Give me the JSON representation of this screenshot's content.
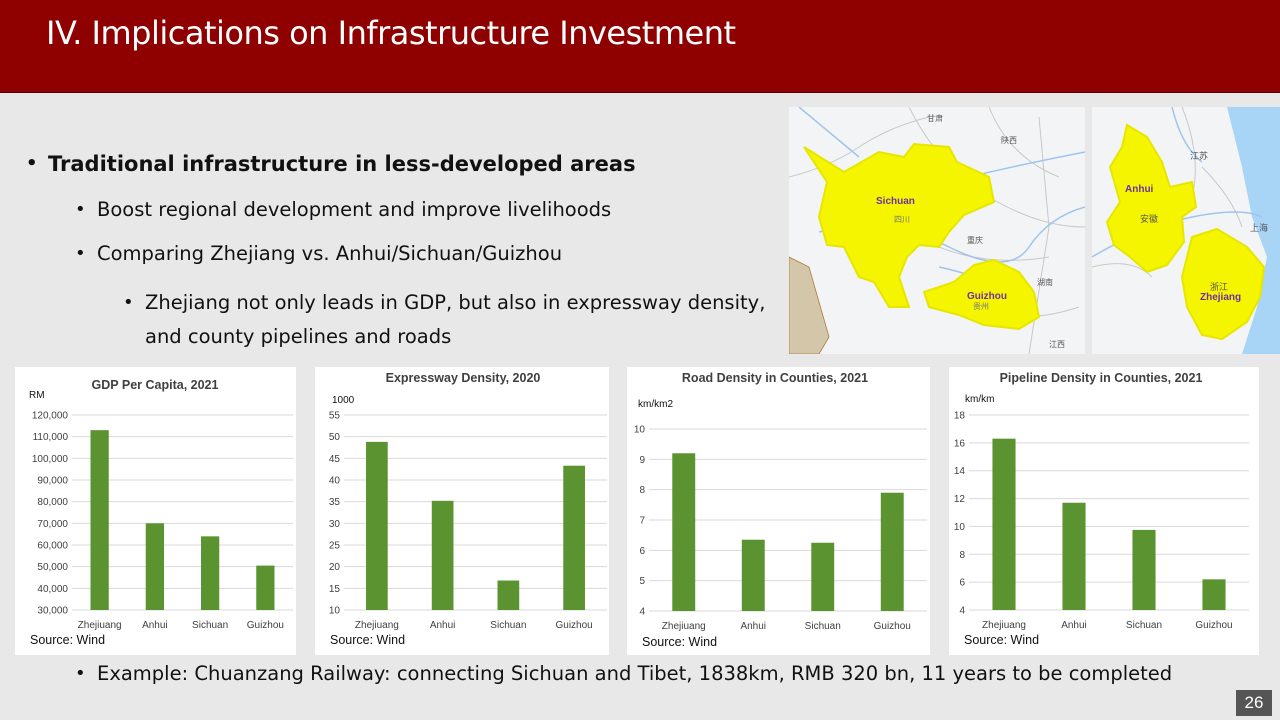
{
  "title": "IV. Implications on Infrastructure Investment",
  "bullets": {
    "main": "Traditional infrastructure in less-developed areas",
    "sub1": "Boost regional development and improve livelihoods",
    "sub2": "Comparing Zhejiang vs. Anhui/Sichuan/Guizhou",
    "sub3_line1": "Zhejiang not only leads in GDP, but also in expressway density,",
    "sub3_line2": "and county pipelines and roads",
    "example": "Example: Chuanzang Railway: connecting Sichuan and Tibet, 1838km, RMB 320 bn, 11 years to be completed"
  },
  "maps": {
    "left": {
      "labels": {
        "sichuan": "Sichuan",
        "guizhou": "Guizhou",
        "gansu": "甘肃",
        "shaanxi": "陕西",
        "sichuan_cn": "四川",
        "chongqing": "重庆",
        "hunan": "湖南",
        "guizhou_cn": "贵州",
        "jiangxi": "江西"
      }
    },
    "right": {
      "labels": {
        "anhui": "Anhui",
        "zhejiang": "Zhejiang",
        "jiangsu": "江苏",
        "anhui_cn": "安徽",
        "shanghai": "上海",
        "zhejiang_cn": "浙江"
      }
    },
    "highlight_color": "#f5f500"
  },
  "colors": {
    "bar": "#5b9331",
    "title_bar": "#8f0000"
  },
  "source_label": "Source: Wind",
  "page_number": "26",
  "chart_data": [
    {
      "type": "bar",
      "title": "GDP Per Capita, 2021",
      "unit": "RM",
      "categories": [
        "Zhejiuang",
        "Anhui",
        "Sichuan",
        "Guizhou"
      ],
      "values": [
        113000,
        70000,
        64000,
        50500
      ],
      "ylim": [
        30000,
        120000
      ],
      "yticks": [
        30000,
        40000,
        50000,
        60000,
        70000,
        80000,
        90000,
        100000,
        110000,
        120000
      ],
      "ticklabels": [
        "30,000",
        "40,000",
        "50,000",
        "60,000",
        "70,000",
        "80,000",
        "90,000",
        "100,000",
        "110,000",
        "120,000"
      ],
      "grid": true
    },
    {
      "type": "bar",
      "title": "Expressway Density, 2020",
      "unit": "1000",
      "categories": [
        "Zhejiuang",
        "Anhui",
        "Sichuan",
        "Guizhou"
      ],
      "values": [
        48.8,
        35.2,
        16.8,
        43.3
      ],
      "ylim": [
        10,
        55
      ],
      "yticks": [
        10,
        15,
        20,
        25,
        30,
        35,
        40,
        45,
        50,
        55
      ],
      "ticklabels": [
        "10",
        "15",
        "20",
        "25",
        "30",
        "35",
        "40",
        "45",
        "50",
        "55"
      ],
      "grid": true
    },
    {
      "type": "bar",
      "title": "Road Density in Counties, 2021",
      "unit": "km/km2",
      "categories": [
        "Zhejiuang",
        "Anhui",
        "Sichuan",
        "Guizhou"
      ],
      "values": [
        9.2,
        6.35,
        6.25,
        7.9
      ],
      "ylim": [
        4,
        10
      ],
      "yticks": [
        4,
        5,
        6,
        7,
        8,
        9,
        10
      ],
      "ticklabels": [
        "4",
        "5",
        "6",
        "7",
        "8",
        "9",
        "10"
      ],
      "grid": true
    },
    {
      "type": "bar",
      "title": "Pipeline Density in Counties, 2021",
      "unit": "km/km",
      "categories": [
        "Zhejiuang",
        "Anhui",
        "Sichuan",
        "Guizhou"
      ],
      "values": [
        16.3,
        11.7,
        9.75,
        6.2
      ],
      "ylim": [
        4,
        18
      ],
      "yticks": [
        4,
        6,
        8,
        10,
        12,
        14,
        16,
        18
      ],
      "ticklabels": [
        "4",
        "6",
        "8",
        "10",
        "12",
        "14",
        "16",
        "18"
      ],
      "grid": true
    }
  ]
}
